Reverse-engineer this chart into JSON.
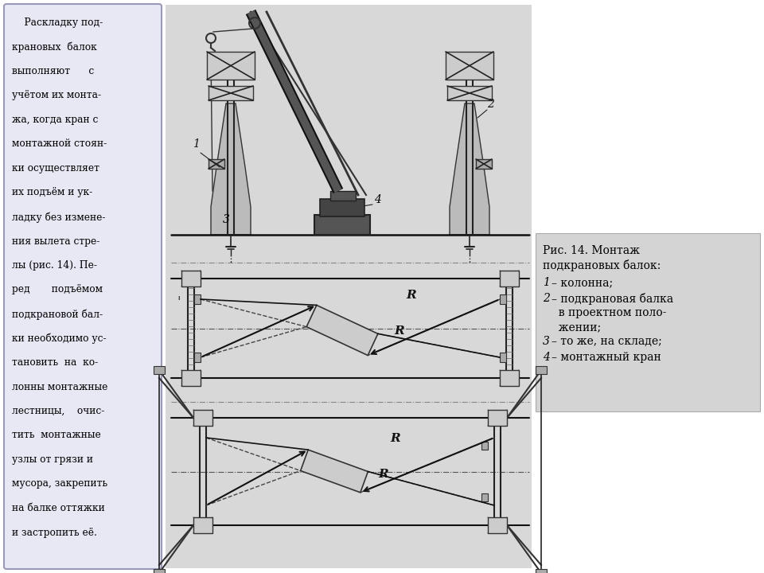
{
  "bg_color": "#ffffff",
  "left_box_color": "#e8e8f4",
  "left_box_border": "#9999bb",
  "right_box_color": "#d4d4d4",
  "diagram_bg": "#d8d8d8",
  "left_text_lines": [
    "    Раскладку под-",
    "крановых  балок",
    "выполняют      с",
    "учётом их монта-",
    "жа, когда кран с",
    "монтажной стоян-",
    "ки осуществляет",
    "их подъём и ук-",
    "ладку без измене-",
    "ния вылета стре-",
    "лы (рис. 14). Пе-",
    "ред       подъёмом",
    "подкрановой бал-",
    "ки необходимо ус-",
    "тановить  на  ко-",
    "лонны монтажные",
    "лестницы,    очис-",
    "тить  монтажные",
    "узлы от грязи и",
    "мусора, закрепить",
    "на балке оттяжки",
    "и застропить её."
  ]
}
